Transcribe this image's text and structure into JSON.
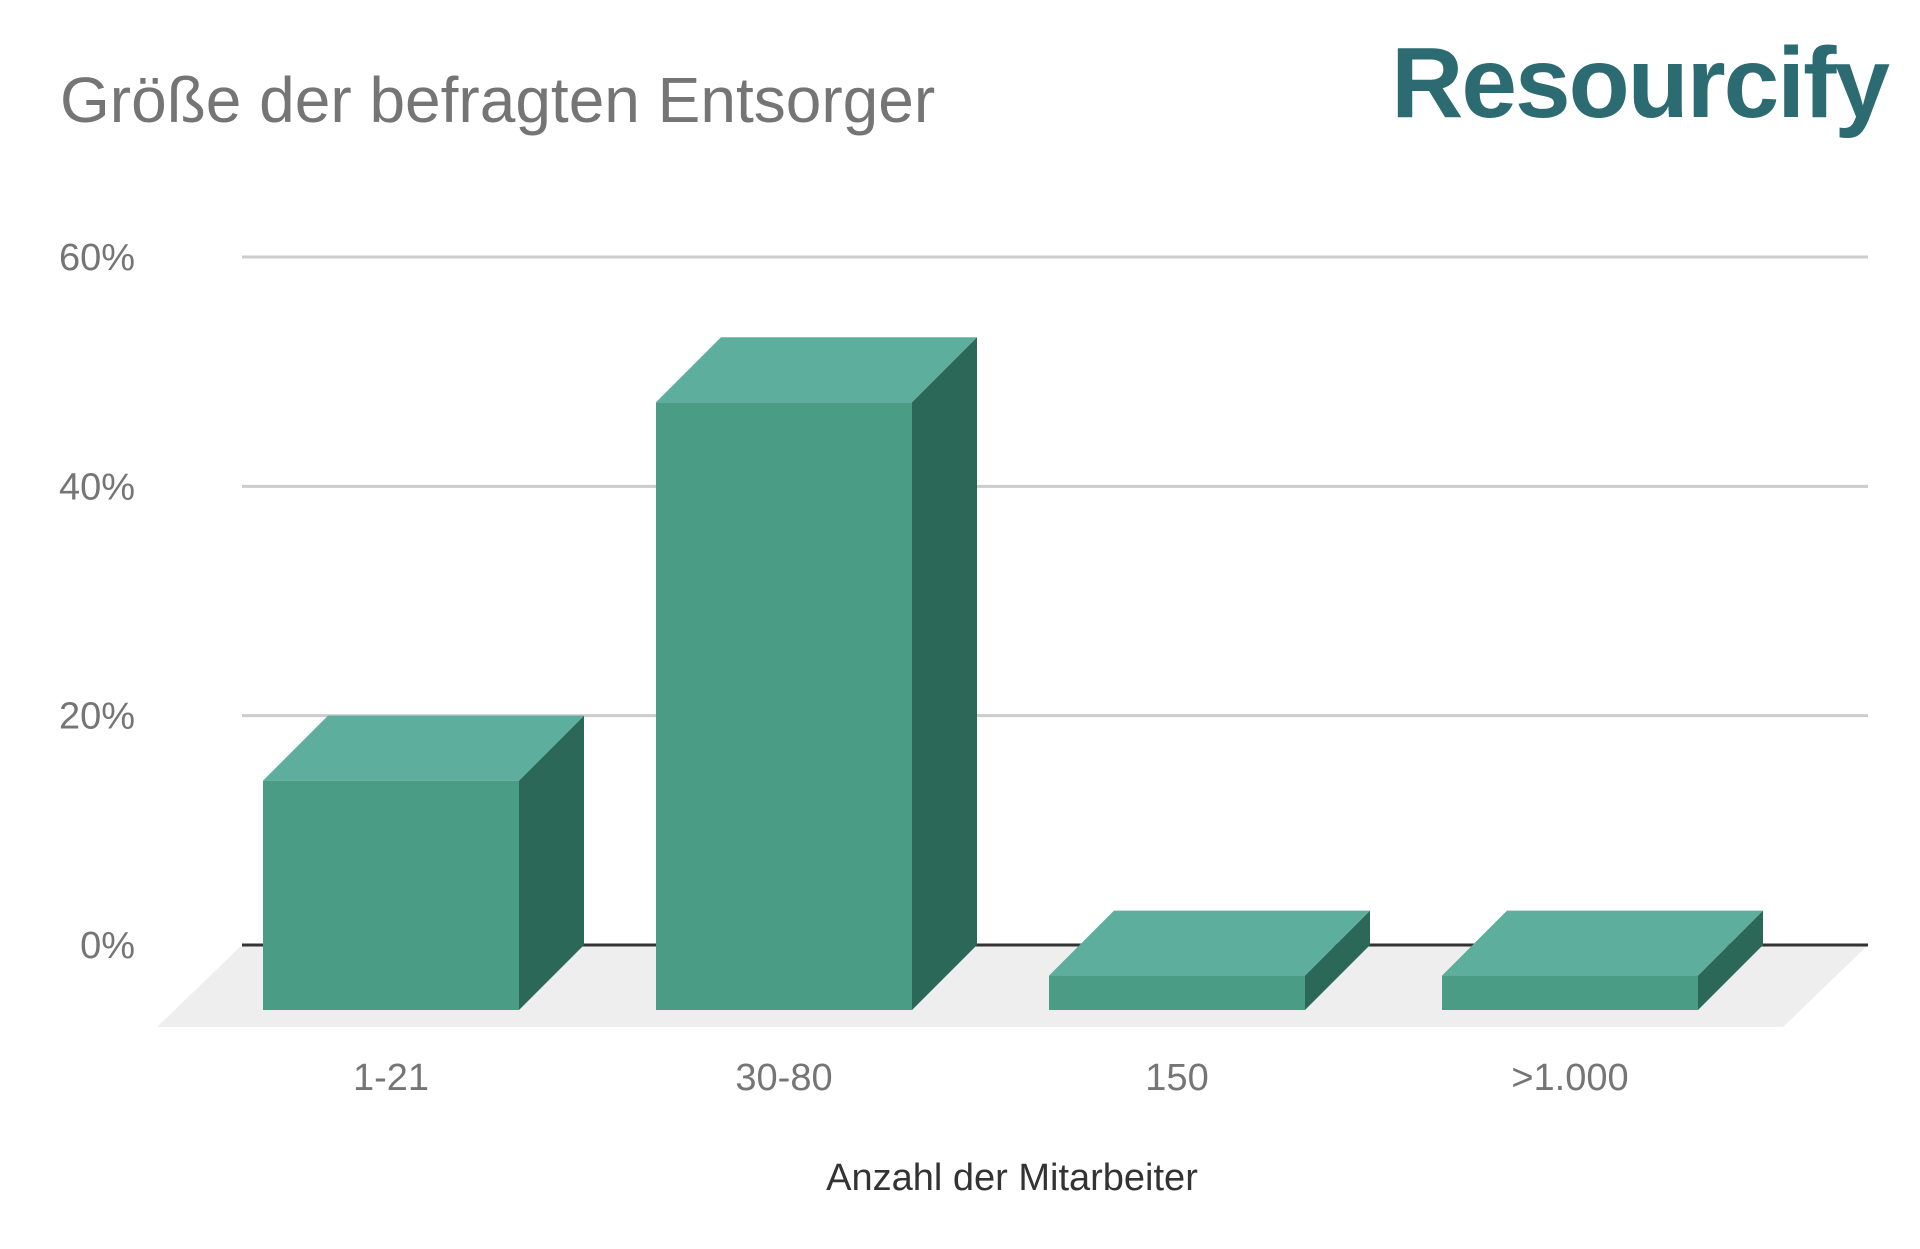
{
  "logo_text": "Resourcify",
  "colors": {
    "bar_front": "#4a9c85",
    "bar_top": "#5dae9c",
    "bar_side": "#2b6858",
    "floor": "#eeeeee",
    "grid": "#cccccc",
    "baseline": "#333333",
    "title_text": "#757575",
    "tick_text": "#757575",
    "axis_title_text": "#333333",
    "logo": "#2c6b72"
  },
  "chart_data": {
    "type": "bar",
    "style": "3d",
    "title": "Größe der befragten Entsorger",
    "xlabel": "Anzahl der Mitarbeiter",
    "ylabel": "",
    "categories": [
      "1-21",
      "30-80",
      "150",
      ">1.000"
    ],
    "values": [
      20,
      53,
      3,
      3
    ],
    "value_unit": "%",
    "ylim": [
      0,
      60
    ],
    "yticks": [
      0,
      20,
      40,
      60
    ],
    "ytick_labels": [
      "0%",
      "20%",
      "40%",
      "60%"
    ],
    "grid": true,
    "legend": "none"
  }
}
